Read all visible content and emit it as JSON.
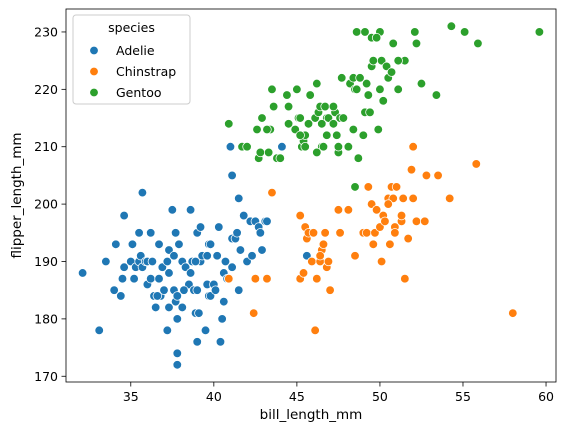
{
  "chart_data": {
    "type": "scatter",
    "xlabel": "bill_length_mm",
    "ylabel": "flipper_length_mm",
    "xlim": [
      31.1,
      60.6
    ],
    "ylim": [
      169,
      234
    ],
    "xticks": [
      35,
      40,
      45,
      50,
      55,
      60
    ],
    "yticks": [
      170,
      180,
      190,
      200,
      210,
      220,
      230
    ],
    "grid": false,
    "legend": {
      "title": "species",
      "placement": "top-left"
    },
    "series": [
      {
        "name": "Adelie",
        "color": "#1f77b4",
        "points": [
          [
            32.1,
            188
          ],
          [
            33.1,
            178
          ],
          [
            33.5,
            190
          ],
          [
            34,
            185
          ],
          [
            34.1,
            193
          ],
          [
            34.4,
            184
          ],
          [
            34.5,
            187
          ],
          [
            34.6,
            189
          ],
          [
            34.6,
            198
          ],
          [
            35,
            190
          ],
          [
            35.1,
            193
          ],
          [
            35.2,
            187
          ],
          [
            35.3,
            189
          ],
          [
            35.5,
            190
          ],
          [
            35.5,
            195
          ],
          [
            35.6,
            191
          ],
          [
            35.7,
            202
          ],
          [
            35.7,
            189
          ],
          [
            35.9,
            190
          ],
          [
            36,
            186
          ],
          [
            36,
            190
          ],
          [
            36.2,
            187
          ],
          [
            36.2,
            195
          ],
          [
            36.3,
            190
          ],
          [
            36.4,
            184
          ],
          [
            36.5,
            182
          ],
          [
            36.6,
            184
          ],
          [
            36.7,
            187
          ],
          [
            36.7,
            193
          ],
          [
            36.8,
            184
          ],
          [
            36.9,
            189
          ],
          [
            37,
            185
          ],
          [
            37.2,
            190
          ],
          [
            37.3,
            188
          ],
          [
            37.3,
            192
          ],
          [
            37.3,
            182
          ],
          [
            37.5,
            199
          ],
          [
            37.6,
            185
          ],
          [
            37.6,
            191
          ],
          [
            37.7,
            183
          ],
          [
            37.7,
            195
          ],
          [
            37.8,
            180
          ],
          [
            37.8,
            174
          ],
          [
            37.8,
            172
          ],
          [
            37.9,
            193
          ],
          [
            38.1,
            182
          ],
          [
            38.1,
            190
          ],
          [
            38.2,
            185
          ],
          [
            38.3,
            189
          ],
          [
            38.5,
            186
          ],
          [
            38.6,
            188
          ],
          [
            38.6,
            199
          ],
          [
            38.7,
            190
          ],
          [
            38.8,
            185
          ],
          [
            38.9,
            181
          ],
          [
            39,
            185
          ],
          [
            39,
            195
          ],
          [
            39.1,
            181
          ],
          [
            39.2,
            190
          ],
          [
            39.3,
            191
          ],
          [
            39.5,
            178
          ],
          [
            39.6,
            186
          ],
          [
            39.6,
            191
          ],
          [
            39.7,
            184
          ],
          [
            39.7,
            193
          ],
          [
            39.8,
            184
          ],
          [
            40,
            186
          ],
          [
            40.1,
            185
          ],
          [
            40.2,
            191
          ],
          [
            40.3,
            196
          ],
          [
            40.4,
            176
          ],
          [
            40.5,
            180
          ],
          [
            40.6,
            183
          ],
          [
            40.6,
            188
          ],
          [
            40.7,
            190
          ],
          [
            40.8,
            187
          ],
          [
            40.9,
            187
          ],
          [
            41,
            210
          ],
          [
            41.1,
            189
          ],
          [
            41.1,
            194
          ],
          [
            41.3,
            194
          ],
          [
            41.4,
            195
          ],
          [
            41.5,
            201
          ],
          [
            41.5,
            185
          ],
          [
            41.6,
            192
          ],
          [
            41.8,
            198
          ],
          [
            42,
            190
          ],
          [
            42.2,
            197
          ],
          [
            42.3,
            191
          ],
          [
            42.5,
            197
          ],
          [
            42.7,
            196
          ],
          [
            42.8,
            195
          ],
          [
            42.9,
            192
          ],
          [
            43.1,
            197
          ],
          [
            43.2,
            197
          ],
          [
            44.1,
            210
          ],
          [
            45.6,
            191
          ],
          [
            46,
            195
          ],
          [
            37.2,
            178
          ],
          [
            38.2,
            185
          ],
          [
            39,
            176
          ],
          [
            36.6,
            184
          ],
          [
            37.8,
            184
          ],
          [
            40.9,
            214
          ],
          [
            41.1,
            205
          ],
          [
            38.9,
            190
          ],
          [
            39.2,
            196
          ],
          [
            39.8,
            193
          ]
        ]
      },
      {
        "name": "Chinstrap",
        "color": "#ff7f0e",
        "points": [
          [
            40.9,
            187
          ],
          [
            42.4,
            181
          ],
          [
            42.5,
            187
          ],
          [
            43.2,
            187
          ],
          [
            43.5,
            202
          ],
          [
            45.2,
            198
          ],
          [
            45.2,
            187
          ],
          [
            45.4,
            188
          ],
          [
            45.5,
            196
          ],
          [
            45.6,
            194
          ],
          [
            45.7,
            195
          ],
          [
            45.9,
            190
          ],
          [
            46,
            195
          ],
          [
            46.1,
            178
          ],
          [
            46.2,
            187
          ],
          [
            46.4,
            190
          ],
          [
            46.5,
            192
          ],
          [
            46.6,
            193
          ],
          [
            46.7,
            195
          ],
          [
            46.8,
            189
          ],
          [
            46.9,
            190
          ],
          [
            47,
            185
          ],
          [
            47.5,
            199
          ],
          [
            47.6,
            195
          ],
          [
            48.1,
            199
          ],
          [
            48.5,
            191
          ],
          [
            49,
            195
          ],
          [
            49.2,
            195
          ],
          [
            49.3,
            203
          ],
          [
            49.5,
            200
          ],
          [
            49.6,
            193
          ],
          [
            49.7,
            195
          ],
          [
            49.8,
            199
          ],
          [
            50,
            196
          ],
          [
            50.1,
            190
          ],
          [
            50.2,
            198
          ],
          [
            50.3,
            197
          ],
          [
            50.5,
            201
          ],
          [
            50.6,
            193
          ],
          [
            50.7,
            203
          ],
          [
            50.8,
            201
          ],
          [
            50.9,
            196
          ],
          [
            51,
            203
          ],
          [
            51.3,
            197
          ],
          [
            51.4,
            201
          ],
          [
            51.5,
            187
          ],
          [
            51.7,
            194
          ],
          [
            51.9,
            206
          ],
          [
            52,
            201
          ],
          [
            52.2,
            197
          ],
          [
            52.7,
            197
          ],
          [
            52.8,
            205
          ],
          [
            53.5,
            205
          ],
          [
            54.2,
            201
          ],
          [
            55.8,
            207
          ],
          [
            58,
            181
          ],
          [
            50.5,
            200
          ],
          [
            46.4,
            191
          ],
          [
            51.3,
            198
          ],
          [
            52,
            210
          ],
          [
            50.9,
            195
          ]
        ]
      },
      {
        "name": "Gentoo",
        "color": "#2ca02c",
        "points": [
          [
            40.9,
            214
          ],
          [
            41.7,
            210
          ],
          [
            42,
            210
          ],
          [
            42.6,
            213
          ],
          [
            42.7,
            208
          ],
          [
            42.8,
            209
          ],
          [
            42.9,
            215
          ],
          [
            43.3,
            209
          ],
          [
            43.4,
            213
          ],
          [
            43.5,
            220
          ],
          [
            43.6,
            217
          ],
          [
            43.8,
            208
          ],
          [
            44,
            208
          ],
          [
            44.4,
            219
          ],
          [
            44.5,
            214
          ],
          [
            44.9,
            213
          ],
          [
            45,
            220
          ],
          [
            45.1,
            215
          ],
          [
            45.2,
            215
          ],
          [
            45.3,
            210
          ],
          [
            45.4,
            211
          ],
          [
            45.5,
            212
          ],
          [
            45.7,
            214
          ],
          [
            45.8,
            219
          ],
          [
            46.1,
            215
          ],
          [
            46.2,
            221
          ],
          [
            46.3,
            216
          ],
          [
            46.4,
            217
          ],
          [
            46.5,
            210
          ],
          [
            46.6,
            210
          ],
          [
            46.7,
            217
          ],
          [
            46.8,
            215
          ],
          [
            46.9,
            215
          ],
          [
            47.2,
            214
          ],
          [
            47.3,
            216
          ],
          [
            47.4,
            212
          ],
          [
            47.5,
            209
          ],
          [
            47.6,
            215
          ],
          [
            47.7,
            222
          ],
          [
            47.8,
            215
          ],
          [
            48.1,
            210
          ],
          [
            48.2,
            221
          ],
          [
            48.4,
            222
          ],
          [
            48.5,
            220
          ],
          [
            48.6,
            230
          ],
          [
            48.7,
            208
          ],
          [
            48.8,
            222
          ],
          [
            49,
            212
          ],
          [
            49.1,
            216
          ],
          [
            49.2,
            221
          ],
          [
            49.3,
            219
          ],
          [
            49.4,
            216
          ],
          [
            49.5,
            224
          ],
          [
            49.6,
            225
          ],
          [
            49.8,
            229
          ],
          [
            49.9,
            213
          ],
          [
            50,
            220
          ],
          [
            50.1,
            225
          ],
          [
            50.2,
            218
          ],
          [
            50.4,
            224
          ],
          [
            50.5,
            222
          ],
          [
            50.7,
            223
          ],
          [
            50.8,
            228
          ],
          [
            51.1,
            220
          ],
          [
            51.5,
            225
          ],
          [
            52.1,
            230
          ],
          [
            52.2,
            228
          ],
          [
            52.5,
            221
          ],
          [
            53.4,
            219
          ],
          [
            54.3,
            231
          ],
          [
            55.1,
            230
          ],
          [
            55.9,
            228
          ],
          [
            59.6,
            230
          ],
          [
            45.5,
            210
          ],
          [
            46.8,
            212
          ],
          [
            48.4,
            213
          ],
          [
            49.5,
            229
          ],
          [
            47.2,
            217
          ],
          [
            45.2,
            212
          ],
          [
            43.2,
            213
          ],
          [
            44.5,
            217
          ],
          [
            46.2,
            209
          ],
          [
            50,
            230
          ],
          [
            49.1,
            230
          ],
          [
            48.5,
            203
          ],
          [
            47.5,
            210
          ],
          [
            49.8,
            229
          ],
          [
            51.1,
            225
          ],
          [
            48.6,
            220
          ],
          [
            46.5,
            214
          ]
        ]
      }
    ]
  }
}
